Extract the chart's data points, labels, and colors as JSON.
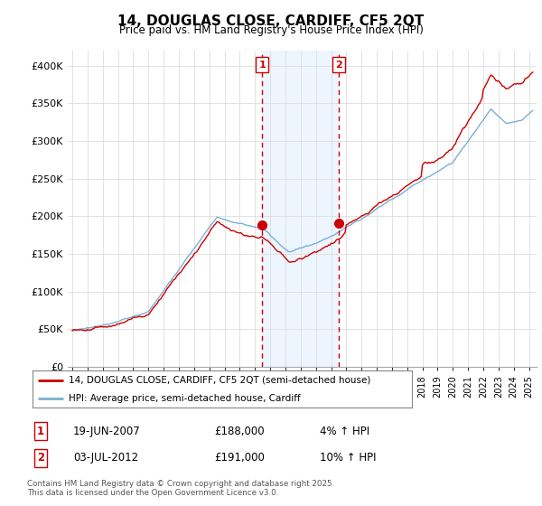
{
  "title": "14, DOUGLAS CLOSE, CARDIFF, CF5 2QT",
  "subtitle": "Price paid vs. HM Land Registry's House Price Index (HPI)",
  "hpi_color": "#7bafd4",
  "price_color": "#cc0000",
  "background_color": "#ffffff",
  "plot_bg_color": "#ffffff",
  "legend_line1": "14, DOUGLAS CLOSE, CARDIFF, CF5 2QT (semi-detached house)",
  "legend_line2": "HPI: Average price, semi-detached house, Cardiff",
  "sale1_label": "1",
  "sale1_date": "19-JUN-2007",
  "sale1_price": "£188,000",
  "sale1_hpi": "4% ↑ HPI",
  "sale2_label": "2",
  "sale2_date": "03-JUL-2012",
  "sale2_price": "£191,000",
  "sale2_hpi": "10% ↑ HPI",
  "footer": "Contains HM Land Registry data © Crown copyright and database right 2025.\nThis data is licensed under the Open Government Licence v3.0.",
  "sale1_year": 2007.47,
  "sale1_value": 188000,
  "sale2_year": 2012.5,
  "sale2_value": 191000,
  "ylim": [
    0,
    420000
  ],
  "xlim_start": 1994.7,
  "xlim_end": 2025.5,
  "vline1_x": 2007.47,
  "vline2_x": 2012.5,
  "shade_xmin": 2007.47,
  "shade_xmax": 2012.5,
  "shade_color": "#ddeeff",
  "shade_alpha": 0.5,
  "grid_color": "#dddddd",
  "yticks": [
    0,
    50000,
    100000,
    150000,
    200000,
    250000,
    300000,
    350000,
    400000
  ]
}
